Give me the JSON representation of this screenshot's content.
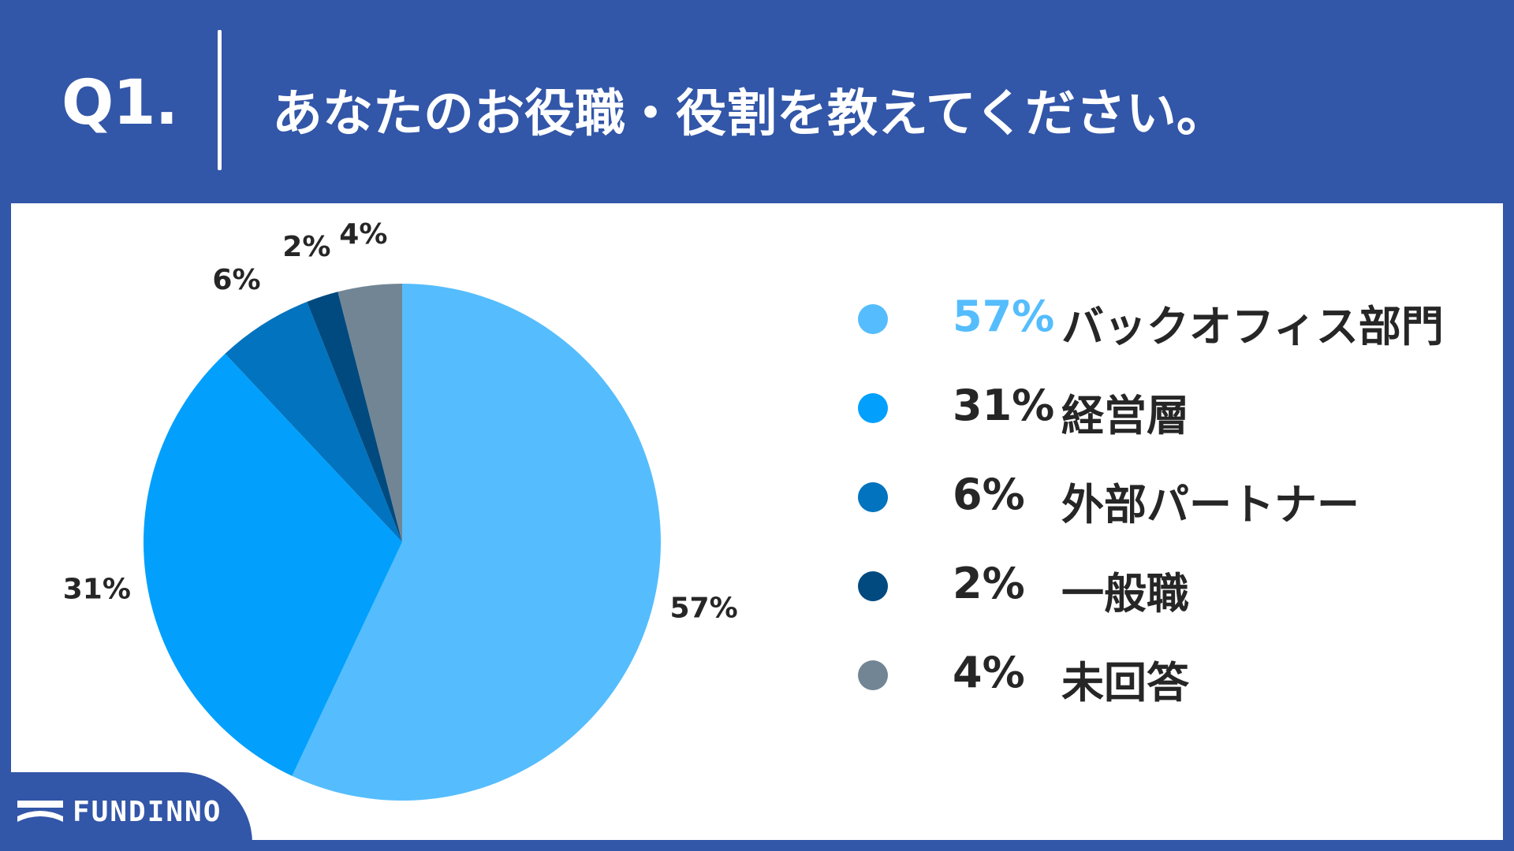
{
  "header": {
    "question_number": "Q1.",
    "question_text": "あなたのお役職・役割を教えてください。"
  },
  "chart_data": {
    "type": "pie",
    "title": "",
    "slices": [
      {
        "label": "バックオフィス部門",
        "value": 57,
        "value_label": "57%",
        "color": "#55bdfd"
      },
      {
        "label": "経営層",
        "value": 31,
        "value_label": "31%",
        "color": "#02a0fc"
      },
      {
        "label": "外部パートナー",
        "value": 6,
        "value_label": "6%",
        "color": "#0273be"
      },
      {
        "label": "一般職",
        "value": 2,
        "value_label": "2%",
        "color": "#014a7f"
      },
      {
        "label": "未回答",
        "value": 4,
        "value_label": "4%",
        "color": "#728594"
      }
    ],
    "start_angle": "12 o'clock",
    "direction": "clockwise",
    "legend_position": "right"
  },
  "legend": {
    "items": [
      {
        "pct": "57%",
        "label": "バックオフィス部門",
        "color": "#55bdfd"
      },
      {
        "pct": "31%",
        "label": "経営層",
        "color": "#02a0fc"
      },
      {
        "pct": "6%",
        "label": "外部パートナー",
        "color": "#0273be"
      },
      {
        "pct": "2%",
        "label": "一般職",
        "color": "#014a7f"
      },
      {
        "pct": "4%",
        "label": "未回答",
        "color": "#728594"
      }
    ]
  },
  "logo": {
    "text": "FUNDINNO"
  },
  "colors": {
    "brand_blue": "#3256a8",
    "text_dark": "#262626",
    "panel_bg": "#ffffff"
  }
}
